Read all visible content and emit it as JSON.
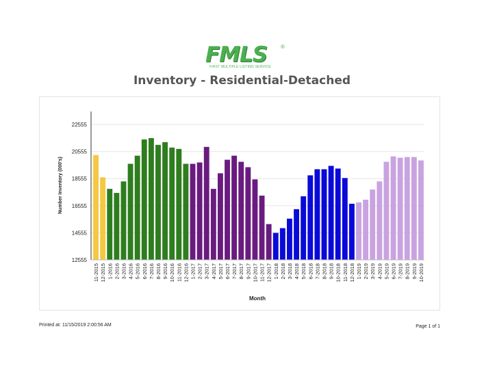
{
  "logo": {
    "text": "FMLS",
    "reg_mark": "®",
    "tagline": "FIRST MULTIPLE LISTING SERVICE"
  },
  "report_title": "Inventory - Residential-Detached",
  "footer": {
    "printed_at": "Printed at:  11/15/2019 2:00:56 AM",
    "page": "Page 1 of 1"
  },
  "colors": {
    "2015": "#f5c842",
    "2016": "#2e7d1e",
    "2017": "#6a1b7f",
    "2018": "#0a0ad8",
    "2019": "#c9a3e0"
  },
  "chart_data": {
    "type": "bar",
    "title": "",
    "xlabel": "Month",
    "ylabel": "Number Inventory (000's)",
    "ylim": [
      12555,
      23555
    ],
    "yticks": [
      12555,
      14555,
      16555,
      18555,
      20555,
      22555
    ],
    "grid": true,
    "categories": [
      "11-2015",
      "12-2015",
      "1-2016",
      "2-2016",
      "3-2016",
      "4-2016",
      "5-2016",
      "6-2016",
      "7-2016",
      "8-2016",
      "9-2016",
      "10-2016",
      "11-2016",
      "12-2016",
      "1-2017",
      "2-2017",
      "3-2017",
      "4-2017",
      "5-2017",
      "6-2017",
      "7-2017",
      "8-2017",
      "9-2017",
      "10-2017",
      "11-2017",
      "12-2017",
      "1-2018",
      "2-2018",
      "3-2018",
      "4-2018",
      "5-2018",
      "6-2018",
      "7-2018",
      "8-2018",
      "9-2018",
      "10-2018",
      "11-2018",
      "12-2018",
      "1-2019",
      "2-2019",
      "3-2019",
      "4-2019",
      "5-2019",
      "6-2019",
      "7-2019",
      "8-2019",
      "9-2019",
      "10-2019"
    ],
    "values": [
      20300,
      18650,
      17800,
      17500,
      18350,
      19650,
      20250,
      21450,
      21550,
      21050,
      21250,
      20850,
      20750,
      19650,
      19650,
      19750,
      20900,
      17800,
      18950,
      19950,
      20250,
      19800,
      19400,
      18500,
      17300,
      15200,
      14550,
      14900,
      15600,
      16300,
      17250,
      18800,
      19250,
      19250,
      19500,
      19300,
      18600,
      16700,
      16800,
      17000,
      17750,
      18350,
      19800,
      20200,
      20100,
      20150,
      20150,
      19900
    ]
  }
}
